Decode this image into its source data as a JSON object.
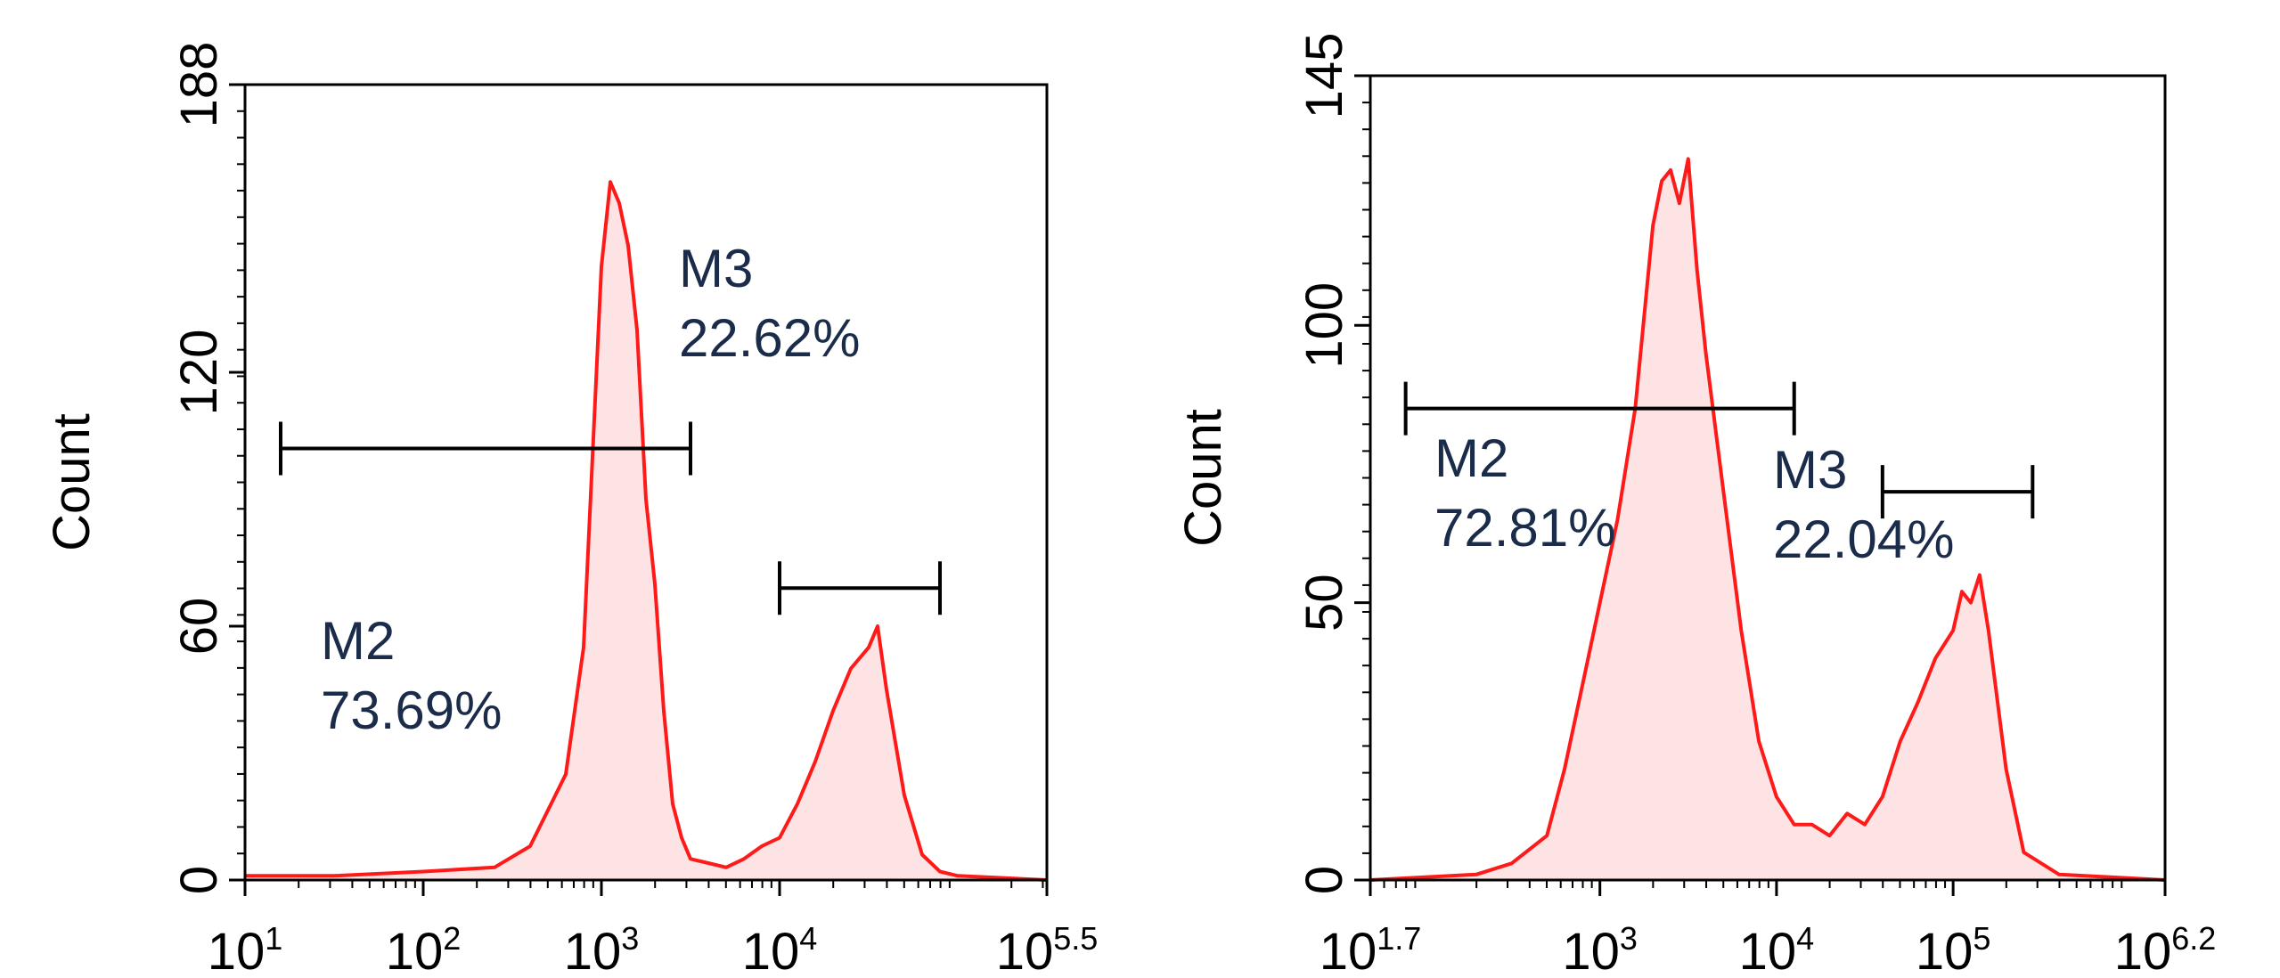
{
  "colors": {
    "histogram_line": "#ff1a1a",
    "histogram_fill": "#fde3e3",
    "axis": "#000000",
    "annotation_text": "#1a2c4a",
    "background": "#ffffff"
  },
  "chart_data": [
    {
      "type": "area",
      "ylabel": "Count",
      "ylim": [
        0,
        188
      ],
      "xlim_log10": [
        1,
        5.5
      ],
      "x_scale": "log10",
      "y_ticks": [
        {
          "value": 0,
          "label": "0"
        },
        {
          "value": 60,
          "label": "60"
        },
        {
          "value": 120,
          "label": "120"
        },
        {
          "value": 188,
          "label": "188"
        }
      ],
      "x_ticks": [
        {
          "exp": 1,
          "label": "10",
          "sup": "1"
        },
        {
          "exp": 2,
          "label": "10",
          "sup": "2"
        },
        {
          "exp": 3,
          "label": "10",
          "sup": "3"
        },
        {
          "exp": 4,
          "label": "10",
          "sup": "4"
        },
        {
          "exp": 5.5,
          "label": "10",
          "sup": "5.5"
        }
      ],
      "series": [
        {
          "x": [
            1,
            1.5,
            2,
            2.4,
            2.6,
            2.8,
            2.9,
            2.95,
            3.0,
            3.05,
            3.1,
            3.15,
            3.2,
            3.25,
            3.3,
            3.35,
            3.4,
            3.45,
            3.5,
            3.6,
            3.7,
            3.8,
            3.9,
            4.0,
            4.1,
            4.2,
            4.3,
            4.4,
            4.5,
            4.55,
            4.6,
            4.7,
            4.8,
            4.9,
            5.0,
            5.5
          ],
          "y": [
            1,
            1,
            2,
            3,
            8,
            25,
            55,
            100,
            145,
            165,
            160,
            150,
            130,
            90,
            70,
            40,
            18,
            10,
            5,
            4,
            3,
            5,
            8,
            10,
            18,
            28,
            40,
            50,
            55,
            60,
            45,
            20,
            6,
            2,
            1,
            0
          ]
        }
      ],
      "gates": [
        {
          "name": "M2",
          "value": "73.69%",
          "x_range": [
            1.2,
            3.5
          ],
          "y": 102
        },
        {
          "name": "M3",
          "value": "22.62%",
          "x_range": [
            4.0,
            4.9
          ],
          "y": 69
        }
      ]
    },
    {
      "type": "area",
      "ylabel": "Count",
      "ylim": [
        0,
        145
      ],
      "xlim_log10": [
        1.7,
        6.2
      ],
      "x_scale": "log10",
      "y_ticks": [
        {
          "value": 0,
          "label": "0"
        },
        {
          "value": 50,
          "label": "50"
        },
        {
          "value": 100,
          "label": "100"
        },
        {
          "value": 145,
          "label": "145"
        }
      ],
      "x_ticks": [
        {
          "exp": 1.7,
          "label": "10",
          "sup": "1.7"
        },
        {
          "exp": 3,
          "label": "10",
          "sup": "3"
        },
        {
          "exp": 4,
          "label": "10",
          "sup": "4"
        },
        {
          "exp": 5,
          "label": "10",
          "sup": "5"
        },
        {
          "exp": 6.2,
          "label": "10",
          "sup": "6.2"
        }
      ],
      "series": [
        {
          "x": [
            1.7,
            2.3,
            2.5,
            2.7,
            2.8,
            2.9,
            3.0,
            3.1,
            3.2,
            3.3,
            3.35,
            3.4,
            3.45,
            3.5,
            3.55,
            3.6,
            3.7,
            3.8,
            3.9,
            4.0,
            4.1,
            4.2,
            4.3,
            4.4,
            4.5,
            4.6,
            4.7,
            4.8,
            4.9,
            5.0,
            5.05,
            5.1,
            5.15,
            5.2,
            5.3,
            5.4,
            5.6,
            6.2
          ],
          "y": [
            0,
            1,
            3,
            8,
            20,
            35,
            50,
            65,
            85,
            118,
            126,
            128,
            122,
            130,
            110,
            95,
            70,
            45,
            25,
            15,
            10,
            10,
            8,
            12,
            10,
            15,
            25,
            32,
            40,
            45,
            52,
            50,
            55,
            45,
            20,
            5,
            1,
            0
          ]
        }
      ],
      "gates": [
        {
          "name": "M2",
          "value": "72.81%",
          "x_range": [
            1.9,
            4.1
          ],
          "y": 85
        },
        {
          "name": "M3",
          "value": "22.04%",
          "x_range": [
            4.6,
            5.45
          ],
          "y": 70
        }
      ]
    }
  ]
}
